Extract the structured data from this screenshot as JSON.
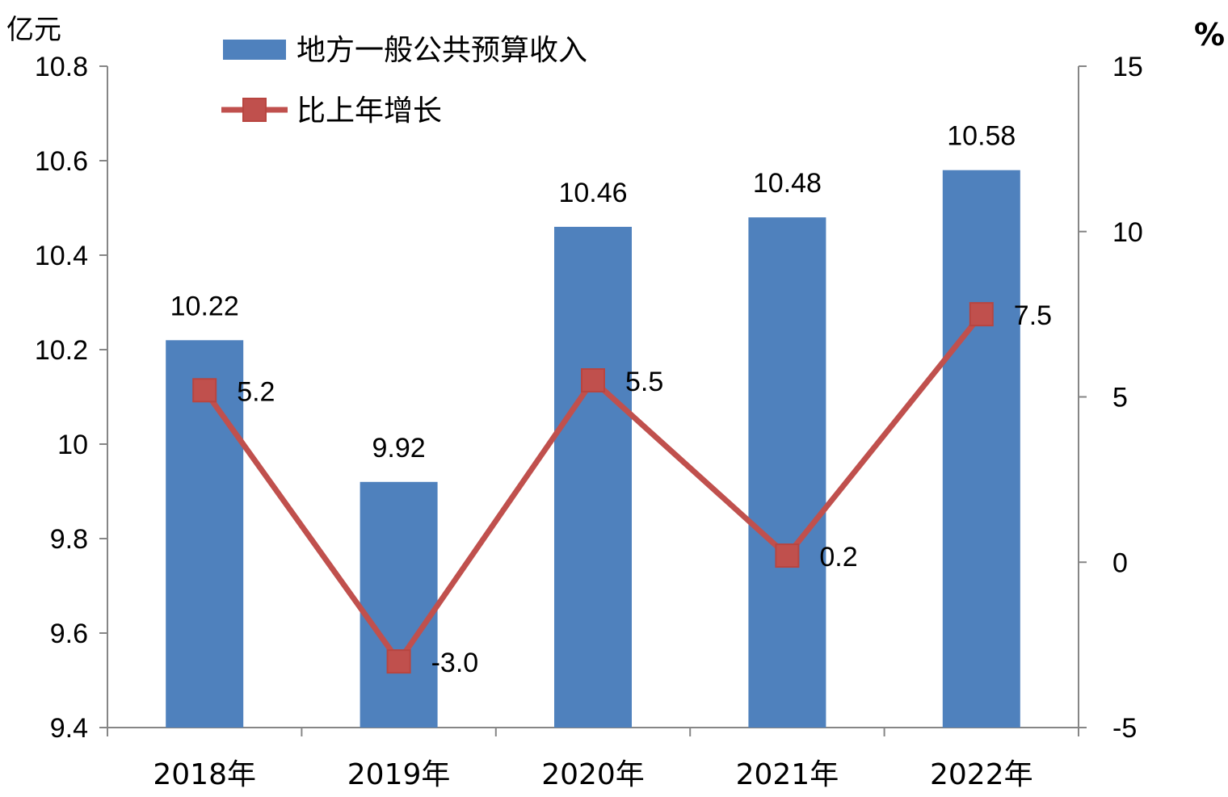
{
  "chart_data": {
    "type": "bar",
    "categories": [
      "2018年",
      "2019年",
      "2020年",
      "2021年",
      "2022年"
    ],
    "series": [
      {
        "name": "地方一般公共预算收入",
        "type": "bar",
        "axis": "left",
        "color": "#4F81BD",
        "values": [
          10.22,
          9.92,
          10.46,
          10.48,
          10.58
        ],
        "labels": [
          "10.22",
          "9.92",
          "10.46",
          "10.48",
          "10.58"
        ]
      },
      {
        "name": "比上年增长",
        "type": "line",
        "axis": "right",
        "color": "#C0504D",
        "marker": "square",
        "values": [
          5.2,
          -3.0,
          5.5,
          0.2,
          7.5
        ],
        "labels": [
          "5.2",
          "-3.0",
          "5.5",
          "0.2",
          "7.5"
        ]
      }
    ],
    "y_left": {
      "unit": "亿元",
      "ylim": [
        9.4,
        10.8
      ],
      "ticks": [
        "9.4",
        "9.6",
        "9.8",
        "10",
        "10.2",
        "10.4",
        "10.6",
        "10.8"
      ]
    },
    "y_right": {
      "unit": "%",
      "ylim": [
        -5,
        15
      ],
      "ticks": [
        "-5",
        "0",
        "5",
        "10",
        "15"
      ]
    },
    "grid": false,
    "legend_position": "top-left"
  }
}
